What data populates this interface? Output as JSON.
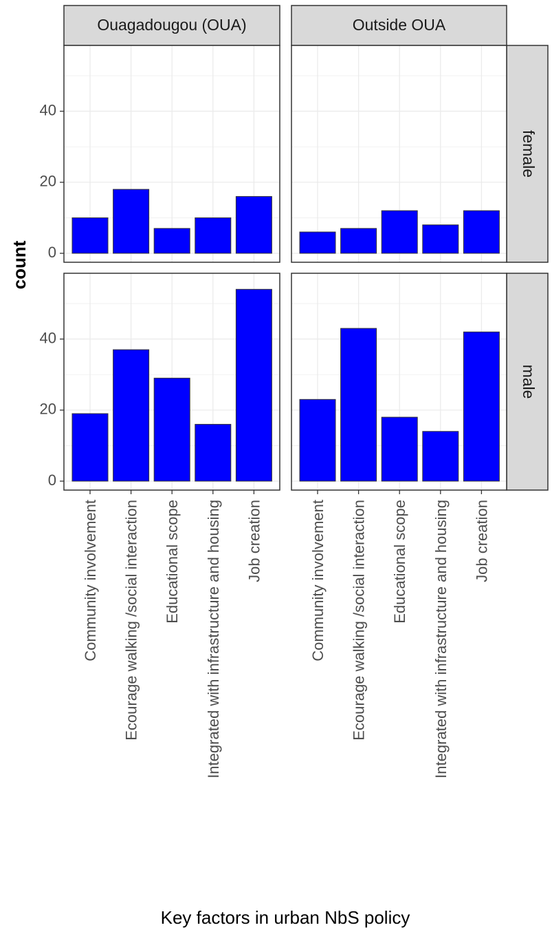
{
  "chart_data": {
    "type": "bar",
    "facet_columns": [
      "Ouagadougou (OUA)",
      "Outside OUA"
    ],
    "facet_rows": [
      "female",
      "male"
    ],
    "categories": [
      "Community involvement",
      "Ecourage walking /social interaction",
      "Educational scope",
      "Integrated with infrastructure and housing",
      "Job creation"
    ],
    "panels": [
      {
        "column": "Ouagadougou (OUA)",
        "row": "female",
        "values": [
          10,
          18,
          7,
          10,
          16
        ]
      },
      {
        "column": "Outside OUA",
        "row": "female",
        "values": [
          6,
          7,
          12,
          8,
          12
        ]
      },
      {
        "column": "Ouagadougou (OUA)",
        "row": "male",
        "values": [
          19,
          37,
          29,
          16,
          54
        ]
      },
      {
        "column": "Outside OUA",
        "row": "male",
        "values": [
          23,
          43,
          18,
          14,
          42
        ]
      }
    ],
    "xlabel": "Key factors in urban NbS policy",
    "ylabel": "count",
    "ylim": [
      0,
      56
    ],
    "yticks": [
      0,
      20,
      40
    ],
    "grid": true,
    "bar_color": "#0000FF",
    "bar_outline": "#333333",
    "strip_fill": "#D9D9D9",
    "panel_border": "#333333",
    "grid_color": "#EBEBEB"
  }
}
